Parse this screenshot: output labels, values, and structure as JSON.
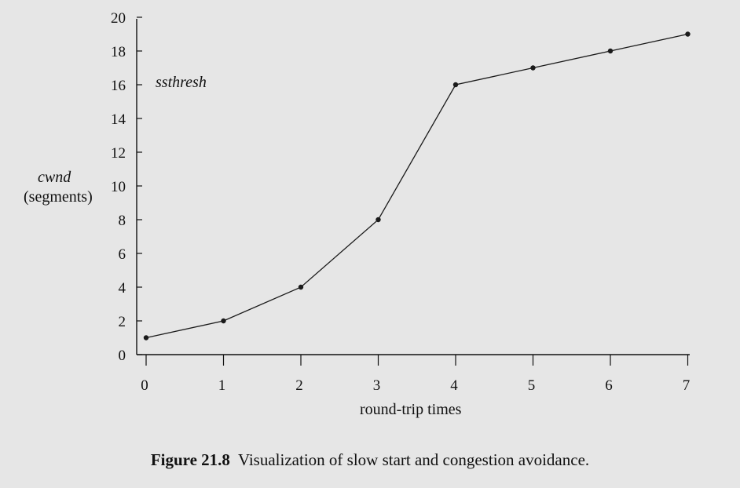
{
  "caption": {
    "label": "Figure 21.8",
    "text": "Visualization of slow start and congestion avoidance."
  },
  "chart_data": {
    "type": "line",
    "x": [
      0,
      1,
      2,
      3,
      4,
      5,
      6,
      7
    ],
    "y": [
      1,
      2,
      4,
      8,
      16,
      17,
      18,
      19
    ],
    "xlim": [
      0,
      7
    ],
    "ylim": [
      0,
      20
    ],
    "xticks": [
      0,
      1,
      2,
      3,
      4,
      5,
      6,
      7
    ],
    "yticks": [
      0,
      2,
      4,
      6,
      8,
      10,
      12,
      14,
      16,
      18,
      20
    ],
    "xlabel": "round-trip times",
    "ylabel_line1": "cwnd",
    "ylabel_line2": "(segments)",
    "annotation": "ssthresh",
    "grid": false,
    "colors": {
      "line": "#1a1a1a",
      "marker": "#1a1a1a"
    }
  }
}
